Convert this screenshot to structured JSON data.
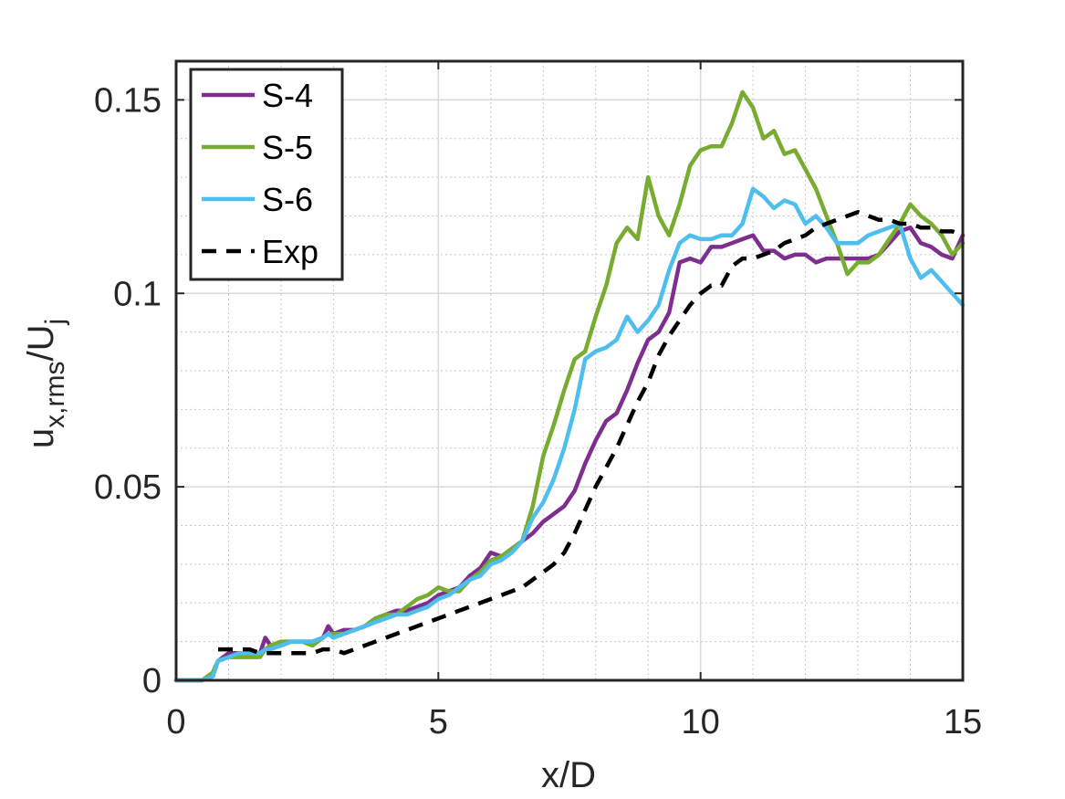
{
  "chart_data": {
    "type": "line",
    "title": "",
    "xlabel": "x/D",
    "ylabel": {
      "base": "u",
      "sub": "x,rms",
      "mid": "/U",
      "sub2": "j"
    },
    "xlim": [
      0,
      15
    ],
    "ylim": [
      0,
      0.16
    ],
    "xticks": [
      0,
      5,
      10,
      15
    ],
    "xtick_labels": [
      "0",
      "5",
      "10",
      "15"
    ],
    "yticks": [
      0,
      0.05,
      0.1,
      0.15
    ],
    "ytick_labels": [
      "0",
      "0.05",
      "0.1",
      "0.15"
    ],
    "grid": true,
    "minor_grid": true,
    "legend_position": "top-left",
    "series": [
      {
        "name": "S-4",
        "color": "#7E2F8E",
        "dash": "solid",
        "x": [
          0,
          0.3,
          0.5,
          0.7,
          0.8,
          1.0,
          1.2,
          1.4,
          1.6,
          1.7,
          1.8,
          2.0,
          2.2,
          2.4,
          2.6,
          2.8,
          2.9,
          3.0,
          3.2,
          3.4,
          3.6,
          3.8,
          4.0,
          4.2,
          4.4,
          4.6,
          4.8,
          5.0,
          5.2,
          5.4,
          5.6,
          5.8,
          6.0,
          6.2,
          6.4,
          6.6,
          6.8,
          7.0,
          7.2,
          7.4,
          7.6,
          7.8,
          8.0,
          8.2,
          8.4,
          8.6,
          8.8,
          9.0,
          9.2,
          9.4,
          9.6,
          9.8,
          10.0,
          10.2,
          10.4,
          10.6,
          10.8,
          11.0,
          11.2,
          11.4,
          11.6,
          11.8,
          12.0,
          12.2,
          12.4,
          12.6,
          12.8,
          13.0,
          13.2,
          13.4,
          13.6,
          13.8,
          14.0,
          14.2,
          14.4,
          14.6,
          14.8,
          15.0
        ],
        "y": [
          0,
          0,
          0,
          0.002,
          0.005,
          0.007,
          0.007,
          0.007,
          0.007,
          0.011,
          0.009,
          0.009,
          0.01,
          0.01,
          0.01,
          0.011,
          0.014,
          0.012,
          0.013,
          0.013,
          0.014,
          0.016,
          0.017,
          0.018,
          0.018,
          0.019,
          0.02,
          0.022,
          0.023,
          0.024,
          0.027,
          0.029,
          0.033,
          0.032,
          0.034,
          0.036,
          0.038,
          0.041,
          0.043,
          0.045,
          0.049,
          0.056,
          0.062,
          0.067,
          0.069,
          0.075,
          0.082,
          0.088,
          0.09,
          0.095,
          0.108,
          0.109,
          0.108,
          0.112,
          0.112,
          0.113,
          0.114,
          0.115,
          0.111,
          0.111,
          0.109,
          0.11,
          0.11,
          0.108,
          0.109,
          0.109,
          0.109,
          0.109,
          0.109,
          0.11,
          0.113,
          0.116,
          0.117,
          0.113,
          0.112,
          0.11,
          0.109,
          0.115
        ]
      },
      {
        "name": "S-5",
        "color": "#77AC30",
        "dash": "solid",
        "x": [
          0,
          0.3,
          0.5,
          0.7,
          0.8,
          1.0,
          1.2,
          1.4,
          1.6,
          1.7,
          1.8,
          2.0,
          2.2,
          2.4,
          2.6,
          2.8,
          2.9,
          3.0,
          3.2,
          3.4,
          3.6,
          3.8,
          4.0,
          4.2,
          4.4,
          4.6,
          4.8,
          5.0,
          5.2,
          5.4,
          5.6,
          5.8,
          6.0,
          6.2,
          6.4,
          6.6,
          6.8,
          7.0,
          7.2,
          7.4,
          7.6,
          7.8,
          8.0,
          8.2,
          8.4,
          8.6,
          8.8,
          9.0,
          9.2,
          9.4,
          9.6,
          9.8,
          10.0,
          10.2,
          10.4,
          10.6,
          10.8,
          11.0,
          11.2,
          11.4,
          11.6,
          11.8,
          12.0,
          12.2,
          12.4,
          12.6,
          12.8,
          13.0,
          13.2,
          13.4,
          13.6,
          13.8,
          14.0,
          14.2,
          14.4,
          14.6,
          14.8,
          15.0
        ],
        "y": [
          0,
          0,
          0,
          0.002,
          0.005,
          0.006,
          0.006,
          0.006,
          0.006,
          0.008,
          0.009,
          0.01,
          0.01,
          0.01,
          0.009,
          0.011,
          0.012,
          0.012,
          0.012,
          0.013,
          0.014,
          0.016,
          0.017,
          0.017,
          0.019,
          0.021,
          0.022,
          0.024,
          0.023,
          0.023,
          0.026,
          0.028,
          0.031,
          0.032,
          0.034,
          0.036,
          0.045,
          0.058,
          0.066,
          0.075,
          0.083,
          0.085,
          0.094,
          0.102,
          0.113,
          0.117,
          0.114,
          0.13,
          0.12,
          0.115,
          0.123,
          0.133,
          0.137,
          0.138,
          0.138,
          0.144,
          0.152,
          0.148,
          0.14,
          0.142,
          0.136,
          0.137,
          0.132,
          0.127,
          0.12,
          0.113,
          0.105,
          0.108,
          0.108,
          0.11,
          0.114,
          0.118,
          0.123,
          0.12,
          0.118,
          0.115,
          0.11,
          0.113
        ]
      },
      {
        "name": "S-6",
        "color": "#4DBEEE",
        "dash": "solid",
        "x": [
          0,
          0.3,
          0.5,
          0.7,
          0.8,
          1.0,
          1.2,
          1.4,
          1.6,
          1.7,
          1.8,
          2.0,
          2.2,
          2.4,
          2.6,
          2.8,
          2.9,
          3.0,
          3.2,
          3.4,
          3.6,
          3.8,
          4.0,
          4.2,
          4.4,
          4.6,
          4.8,
          5.0,
          5.2,
          5.4,
          5.6,
          5.8,
          6.0,
          6.2,
          6.4,
          6.6,
          6.8,
          7.0,
          7.2,
          7.4,
          7.6,
          7.8,
          8.0,
          8.2,
          8.4,
          8.6,
          8.8,
          9.0,
          9.2,
          9.4,
          9.6,
          9.8,
          10.0,
          10.2,
          10.4,
          10.6,
          10.8,
          11.0,
          11.2,
          11.4,
          11.6,
          11.8,
          12.0,
          12.2,
          12.4,
          12.6,
          12.8,
          13.0,
          13.2,
          13.4,
          13.6,
          13.8,
          14.0,
          14.2,
          14.4,
          14.6,
          14.8,
          15.0
        ],
        "y": [
          0,
          0,
          0,
          0.001,
          0.005,
          0.006,
          0.007,
          0.007,
          0.007,
          0.008,
          0.008,
          0.009,
          0.01,
          0.01,
          0.01,
          0.011,
          0.012,
          0.011,
          0.012,
          0.013,
          0.014,
          0.015,
          0.016,
          0.017,
          0.017,
          0.018,
          0.019,
          0.021,
          0.022,
          0.024,
          0.026,
          0.027,
          0.03,
          0.031,
          0.033,
          0.036,
          0.042,
          0.046,
          0.052,
          0.06,
          0.07,
          0.083,
          0.085,
          0.086,
          0.088,
          0.094,
          0.09,
          0.093,
          0.097,
          0.106,
          0.113,
          0.115,
          0.114,
          0.114,
          0.115,
          0.115,
          0.118,
          0.127,
          0.125,
          0.122,
          0.124,
          0.123,
          0.118,
          0.12,
          0.117,
          0.113,
          0.113,
          0.113,
          0.115,
          0.116,
          0.117,
          0.118,
          0.109,
          0.104,
          0.106,
          0.103,
          0.1,
          0.097
        ]
      },
      {
        "name": "Exp",
        "color": "#000000",
        "dash": "dashed",
        "x": [
          0.8,
          1.0,
          1.2,
          1.4,
          1.6,
          1.8,
          2.0,
          2.2,
          2.4,
          2.6,
          2.8,
          3.0,
          3.2,
          3.4,
          3.6,
          3.8,
          4.0,
          4.2,
          4.4,
          4.6,
          4.8,
          5.0,
          5.2,
          5.4,
          5.6,
          5.8,
          6.0,
          6.2,
          6.4,
          6.6,
          6.8,
          7.0,
          7.2,
          7.4,
          7.6,
          7.8,
          8.0,
          8.2,
          8.4,
          8.6,
          8.8,
          9.0,
          9.2,
          9.4,
          9.6,
          9.8,
          10.0,
          10.2,
          10.4,
          10.6,
          10.8,
          11.0,
          11.2,
          11.4,
          11.6,
          11.8,
          12.0,
          12.2,
          12.4,
          12.6,
          12.8,
          13.0,
          13.2,
          13.4,
          13.6,
          13.8,
          14.0,
          14.2,
          14.4,
          14.6,
          14.8,
          15.0
        ],
        "y": [
          0.008,
          0.008,
          0.008,
          0.008,
          0.007,
          0.007,
          0.007,
          0.007,
          0.007,
          0.007,
          0.008,
          0.008,
          0.007,
          0.008,
          0.009,
          0.01,
          0.011,
          0.012,
          0.013,
          0.014,
          0.015,
          0.016,
          0.017,
          0.018,
          0.019,
          0.02,
          0.021,
          0.022,
          0.023,
          0.024,
          0.026,
          0.028,
          0.03,
          0.033,
          0.038,
          0.044,
          0.05,
          0.055,
          0.06,
          0.066,
          0.072,
          0.077,
          0.084,
          0.089,
          0.093,
          0.097,
          0.1,
          0.102,
          0.102,
          0.107,
          0.109,
          0.109,
          0.11,
          0.111,
          0.113,
          0.114,
          0.115,
          0.117,
          0.118,
          0.119,
          0.12,
          0.121,
          0.12,
          0.119,
          0.119,
          0.118,
          0.118,
          0.117,
          0.117,
          0.116,
          0.116,
          0.115
        ]
      }
    ]
  }
}
